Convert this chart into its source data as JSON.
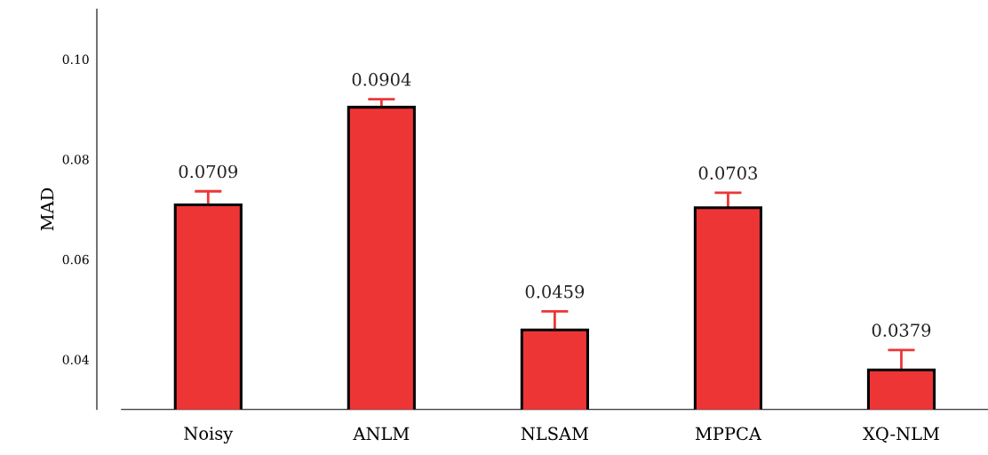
{
  "chart_data": {
    "type": "bar",
    "ylabel": "MAD",
    "categories": [
      "Noisy",
      "ANLM",
      "NLSAM",
      "MPPCA",
      "XQ-NLM"
    ],
    "values": [
      0.0709,
      0.0904,
      0.0459,
      0.0703,
      0.0379
    ],
    "errors": [
      [
        0.0709,
        0.0736
      ],
      [
        0.0904,
        0.092
      ],
      [
        0.0459,
        0.0496
      ],
      [
        0.0703,
        0.0733
      ],
      [
        0.0379,
        0.0419
      ]
    ],
    "color": "#ee3536",
    "data_labels": true,
    "grid": false,
    "legend": false,
    "ylim": [
      0.03,
      0.11
    ],
    "yticks": [
      {
        "value": 0.04,
        "label": "0.04"
      },
      {
        "value": 0.06,
        "label": "0.06"
      },
      {
        "value": 0.08,
        "label": "0.08"
      },
      {
        "value": 0.1,
        "label": "0.10"
      }
    ]
  }
}
